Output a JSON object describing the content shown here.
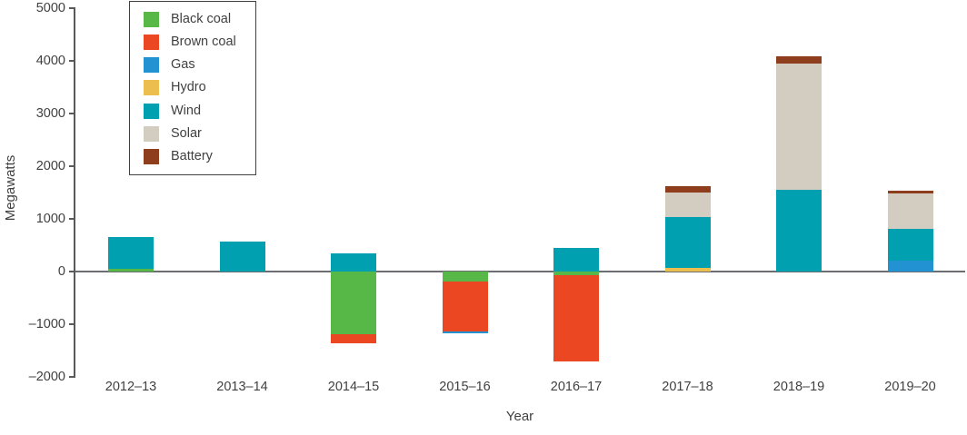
{
  "chart_data": {
    "type": "bar",
    "stacked": true,
    "title": "",
    "xlabel": "Year",
    "ylabel": "Megawatts",
    "categories": [
      "2012–13",
      "2013–14",
      "2014–15",
      "2015–16",
      "2016–17",
      "2017–18",
      "2018–19",
      "2019–20"
    ],
    "series": [
      {
        "name": "Black coal",
        "color": "#57B747",
        "values": [
          60,
          0,
          -1190,
          -190,
          -70,
          0,
          0,
          0
        ]
      },
      {
        "name": "Brown coal",
        "color": "#EC4723",
        "values": [
          0,
          0,
          -170,
          -940,
          -1640,
          0,
          0,
          0
        ]
      },
      {
        "name": "Gas",
        "color": "#2292D2",
        "values": [
          0,
          0,
          0,
          -40,
          0,
          0,
          0,
          210
        ]
      },
      {
        "name": "Hydro",
        "color": "#EBBE4D",
        "values": [
          0,
          0,
          0,
          0,
          0,
          70,
          0,
          0
        ]
      },
      {
        "name": "Wind",
        "color": "#01A0B0",
        "values": [
          590,
          570,
          340,
          0,
          450,
          970,
          1550,
          600
        ]
      },
      {
        "name": "Solar",
        "color": "#D2CCC1",
        "values": [
          0,
          0,
          0,
          0,
          0,
          460,
          2400,
          680
        ]
      },
      {
        "name": "Battery",
        "color": "#8E3D1D",
        "values": [
          0,
          0,
          0,
          0,
          0,
          120,
          140,
          40
        ]
      }
    ],
    "y_ticks": [
      5000,
      4000,
      3000,
      2000,
      1000,
      0,
      -1000,
      -2000
    ],
    "ylim": [
      -2000,
      5000
    ],
    "grid": false,
    "legend_position": "top-left",
    "axis_color": "#58595B",
    "text_color": "#414042"
  }
}
